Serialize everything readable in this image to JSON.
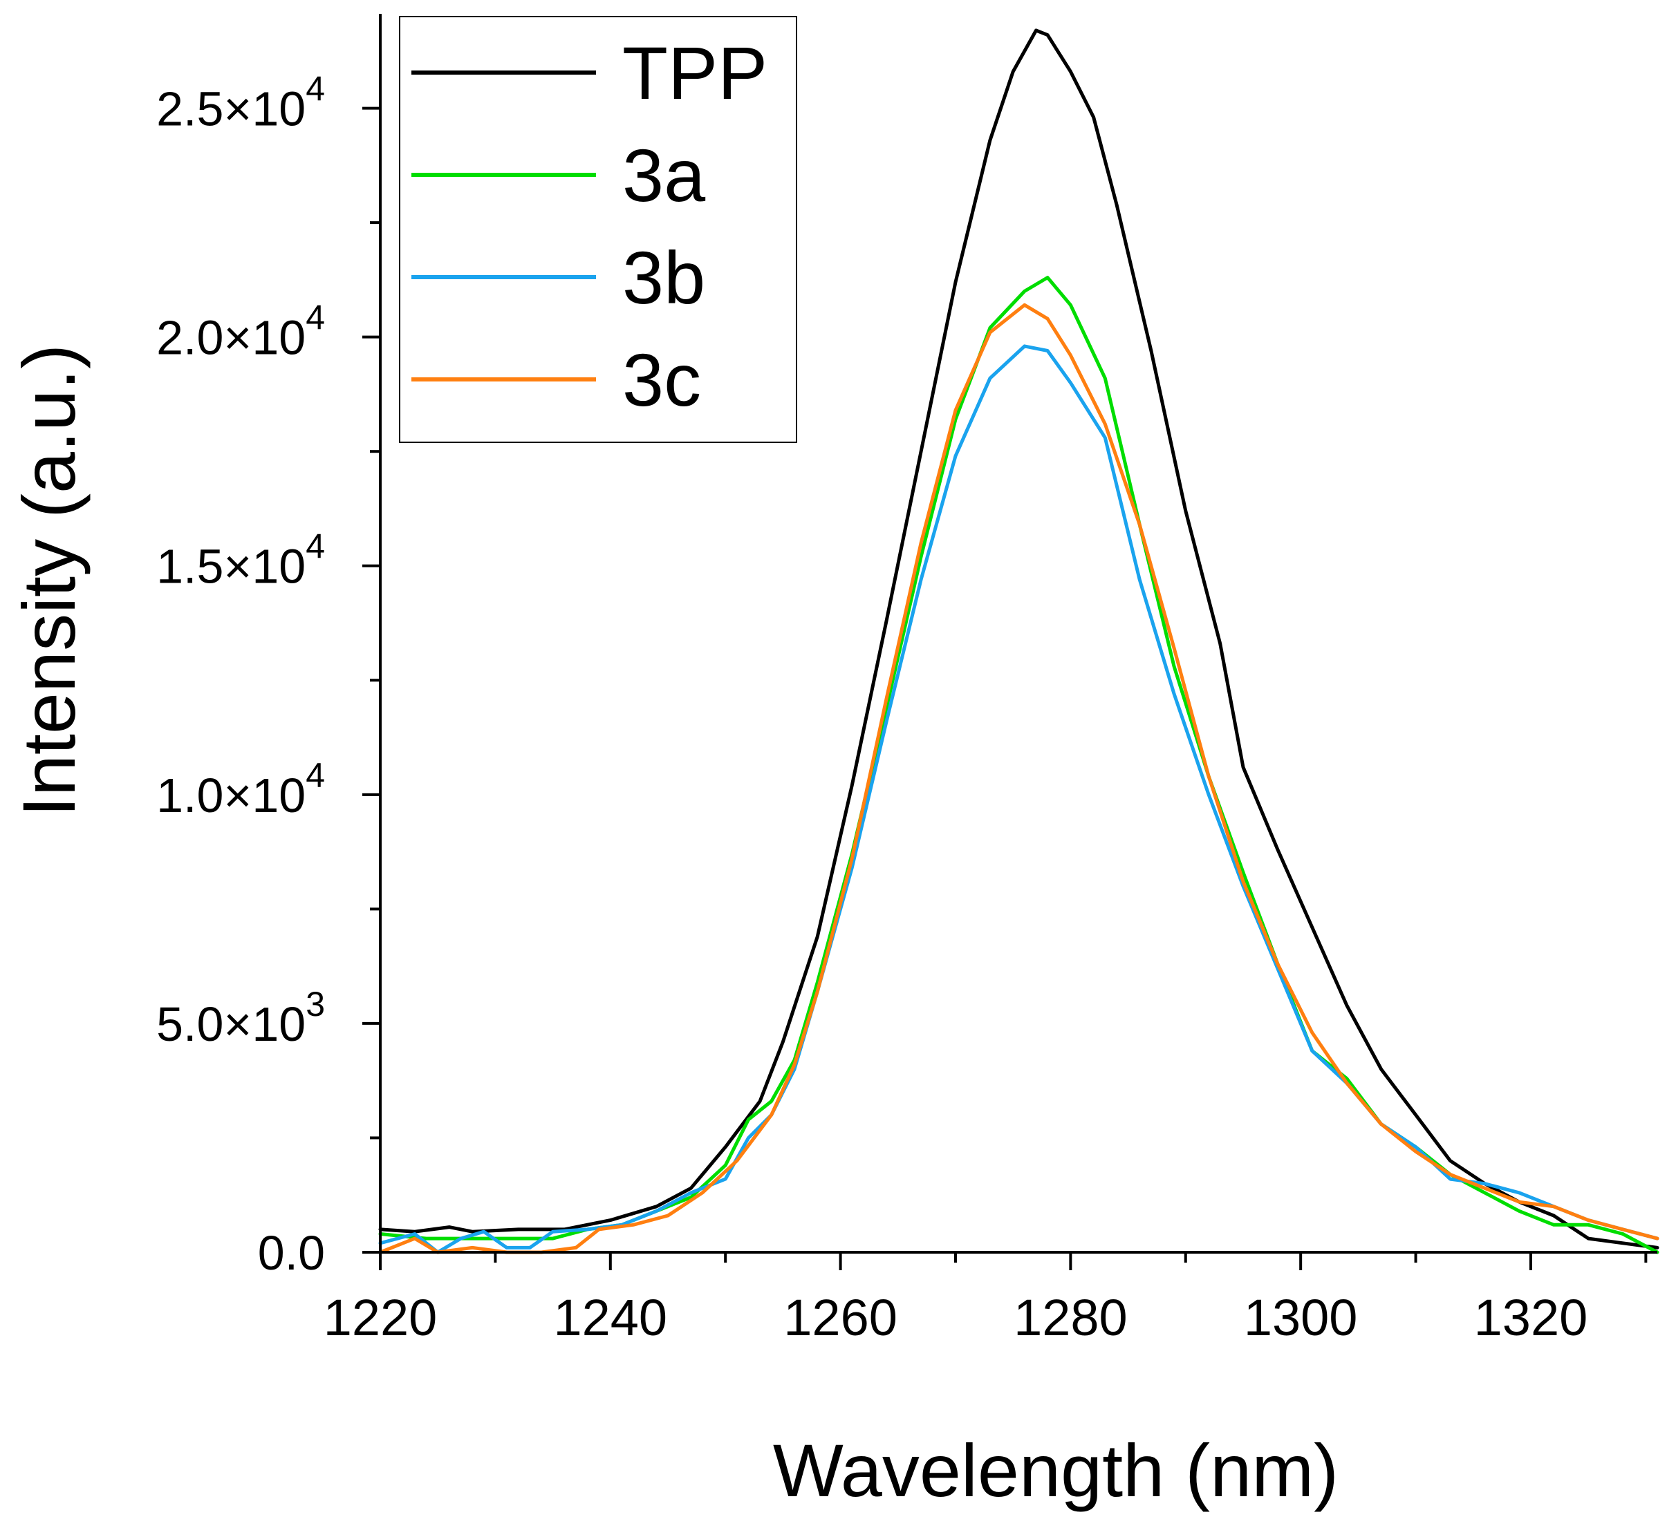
{
  "chart_data": {
    "type": "line",
    "xlabel": "Wavelength (nm)",
    "ylabel": "Intensity (a.u.)",
    "xlim": [
      1220,
      1331
    ],
    "ylim": [
      0,
      26700
    ],
    "x_ticks": [
      {
        "value": 1220,
        "label": "1220"
      },
      {
        "value": 1240,
        "label": "1240"
      },
      {
        "value": 1260,
        "label": "1260"
      },
      {
        "value": 1280,
        "label": "1280"
      },
      {
        "value": 1300,
        "label": "1300"
      },
      {
        "value": 1320,
        "label": "1320"
      }
    ],
    "y_ticks": [
      {
        "value": 0,
        "mantissa": "0.0",
        "exponent": ""
      },
      {
        "value": 5000,
        "mantissa": "5.0×10",
        "exponent": "3"
      },
      {
        "value": 10000,
        "mantissa": "1.0×10",
        "exponent": "4"
      },
      {
        "value": 15000,
        "mantissa": "1.5×10",
        "exponent": "4"
      },
      {
        "value": 20000,
        "mantissa": "2.0×10",
        "exponent": "4"
      },
      {
        "value": 25000,
        "mantissa": "2.5×10",
        "exponent": "4"
      }
    ],
    "legend_position": "top-left",
    "grid": false,
    "series": [
      {
        "name": "TPP",
        "color": "#000000",
        "points": [
          [
            1220,
            500
          ],
          [
            1223,
            450
          ],
          [
            1226,
            550
          ],
          [
            1228,
            450
          ],
          [
            1232,
            500
          ],
          [
            1236,
            500
          ],
          [
            1240,
            700
          ],
          [
            1244,
            1000
          ],
          [
            1247,
            1400
          ],
          [
            1250,
            2300
          ],
          [
            1253,
            3300
          ],
          [
            1255,
            4600
          ],
          [
            1258,
            6900
          ],
          [
            1261,
            10200
          ],
          [
            1264,
            13800
          ],
          [
            1267,
            17500
          ],
          [
            1270,
            21200
          ],
          [
            1273,
            24300
          ],
          [
            1275,
            25800
          ],
          [
            1277,
            26700
          ],
          [
            1278,
            26600
          ],
          [
            1280,
            25800
          ],
          [
            1282,
            24800
          ],
          [
            1284,
            22900
          ],
          [
            1287,
            19700
          ],
          [
            1290,
            16200
          ],
          [
            1293,
            13300
          ],
          [
            1295,
            10600
          ],
          [
            1298,
            8800
          ],
          [
            1301,
            7100
          ],
          [
            1304,
            5400
          ],
          [
            1307,
            4000
          ],
          [
            1310,
            3000
          ],
          [
            1313,
            2000
          ],
          [
            1316,
            1500
          ],
          [
            1319,
            1100
          ],
          [
            1322,
            800
          ],
          [
            1325,
            300
          ],
          [
            1328,
            200
          ],
          [
            1331,
            100
          ]
        ]
      },
      {
        "name": "3a",
        "color": "#00dd00",
        "points": [
          [
            1220,
            400
          ],
          [
            1224,
            300
          ],
          [
            1228,
            300
          ],
          [
            1232,
            300
          ],
          [
            1235,
            300
          ],
          [
            1238,
            500
          ],
          [
            1241,
            600
          ],
          [
            1244,
            900
          ],
          [
            1247,
            1200
          ],
          [
            1250,
            1900
          ],
          [
            1252,
            2900
          ],
          [
            1254,
            3300
          ],
          [
            1256,
            4200
          ],
          [
            1258,
            5900
          ],
          [
            1261,
            8700
          ],
          [
            1264,
            11900
          ],
          [
            1267,
            15200
          ],
          [
            1270,
            18200
          ],
          [
            1273,
            20200
          ],
          [
            1276,
            21000
          ],
          [
            1278,
            21300
          ],
          [
            1280,
            20700
          ],
          [
            1283,
            19100
          ],
          [
            1286,
            15900
          ],
          [
            1289,
            12800
          ],
          [
            1292,
            10400
          ],
          [
            1295,
            8300
          ],
          [
            1298,
            6300
          ],
          [
            1301,
            4400
          ],
          [
            1304,
            3800
          ],
          [
            1307,
            2800
          ],
          [
            1310,
            2300
          ],
          [
            1313,
            1700
          ],
          [
            1316,
            1300
          ],
          [
            1319,
            900
          ],
          [
            1322,
            600
          ],
          [
            1325,
            600
          ],
          [
            1328,
            400
          ],
          [
            1331,
            0
          ]
        ]
      },
      {
        "name": "3b",
        "color": "#1aa3ee",
        "points": [
          [
            1220,
            200
          ],
          [
            1223,
            400
          ],
          [
            1225,
            0
          ],
          [
            1227,
            300
          ],
          [
            1229,
            450
          ],
          [
            1231,
            100
          ],
          [
            1233,
            100
          ],
          [
            1235,
            450
          ],
          [
            1238,
            500
          ],
          [
            1241,
            600
          ],
          [
            1244,
            900
          ],
          [
            1247,
            1300
          ],
          [
            1250,
            1600
          ],
          [
            1252,
            2500
          ],
          [
            1254,
            3000
          ],
          [
            1256,
            4000
          ],
          [
            1258,
            5700
          ],
          [
            1261,
            8400
          ],
          [
            1264,
            11600
          ],
          [
            1267,
            14700
          ],
          [
            1270,
            17400
          ],
          [
            1273,
            19100
          ],
          [
            1276,
            19800
          ],
          [
            1278,
            19700
          ],
          [
            1280,
            19000
          ],
          [
            1283,
            17800
          ],
          [
            1286,
            14700
          ],
          [
            1289,
            12200
          ],
          [
            1292,
            10000
          ],
          [
            1295,
            8000
          ],
          [
            1298,
            6200
          ],
          [
            1301,
            4400
          ],
          [
            1304,
            3700
          ],
          [
            1307,
            2800
          ],
          [
            1310,
            2300
          ],
          [
            1313,
            1600
          ],
          [
            1316,
            1500
          ],
          [
            1319,
            1300
          ],
          [
            1322,
            1000
          ],
          [
            1325,
            700
          ],
          [
            1328,
            500
          ],
          [
            1331,
            300
          ]
        ]
      },
      {
        "name": "3c",
        "color": "#ff7f10",
        "points": [
          [
            1220,
            0
          ],
          [
            1223,
            300
          ],
          [
            1225,
            0
          ],
          [
            1228,
            100
          ],
          [
            1231,
            0
          ],
          [
            1234,
            0
          ],
          [
            1237,
            100
          ],
          [
            1239,
            500
          ],
          [
            1242,
            600
          ],
          [
            1245,
            800
          ],
          [
            1248,
            1300
          ],
          [
            1251,
            2000
          ],
          [
            1254,
            3000
          ],
          [
            1256,
            4100
          ],
          [
            1258,
            5700
          ],
          [
            1261,
            8600
          ],
          [
            1264,
            12100
          ],
          [
            1267,
            15500
          ],
          [
            1270,
            18400
          ],
          [
            1273,
            20100
          ],
          [
            1276,
            20700
          ],
          [
            1278,
            20400
          ],
          [
            1280,
            19600
          ],
          [
            1283,
            18100
          ],
          [
            1286,
            15900
          ],
          [
            1289,
            13200
          ],
          [
            1292,
            10400
          ],
          [
            1295,
            8100
          ],
          [
            1298,
            6300
          ],
          [
            1301,
            4800
          ],
          [
            1304,
            3700
          ],
          [
            1307,
            2800
          ],
          [
            1310,
            2200
          ],
          [
            1313,
            1700
          ],
          [
            1316,
            1400
          ],
          [
            1319,
            1100
          ],
          [
            1322,
            1000
          ],
          [
            1325,
            700
          ],
          [
            1328,
            500
          ],
          [
            1331,
            300
          ]
        ]
      }
    ]
  }
}
